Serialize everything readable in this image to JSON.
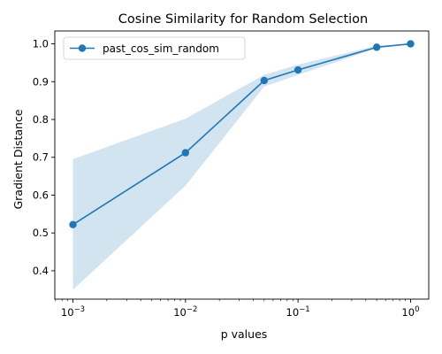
{
  "chart_data": {
    "type": "line",
    "title": "Cosine Similarity for Random Selection",
    "xlabel": "p values",
    "ylabel": "Gradient Distance",
    "x_scale": "log",
    "x_ticks": [
      {
        "value": 0.001,
        "base": "10",
        "exp": "−3"
      },
      {
        "value": 0.01,
        "base": "10",
        "exp": "−2"
      },
      {
        "value": 0.1,
        "base": "10",
        "exp": "−1"
      },
      {
        "value": 1,
        "base": "10",
        "exp": "0"
      }
    ],
    "y_ticks": [
      0.4,
      0.5,
      0.6,
      0.7,
      0.8,
      0.9,
      1.0
    ],
    "y_tick_labels": [
      "0.4",
      "0.5",
      "0.6",
      "0.7",
      "0.8",
      "0.9",
      "1.0"
    ],
    "xlim": [
      0.00069,
      1.45
    ],
    "ylim": [
      0.325,
      1.034
    ],
    "grid": false,
    "legend_position": "upper left",
    "series": [
      {
        "name": "past_cos_sim_random",
        "color": "#1f77b4",
        "marker": "circle",
        "x": [
          0.001,
          0.01,
          0.05,
          0.1,
          0.5,
          1
        ],
        "y": [
          0.522,
          0.712,
          0.903,
          0.931,
          0.991,
          1.0
        ],
        "band_lower": [
          0.35,
          0.625,
          0.887,
          0.918,
          0.988,
          1.0
        ],
        "band_upper": [
          0.695,
          0.802,
          0.918,
          0.945,
          0.995,
          1.0
        ]
      }
    ]
  }
}
